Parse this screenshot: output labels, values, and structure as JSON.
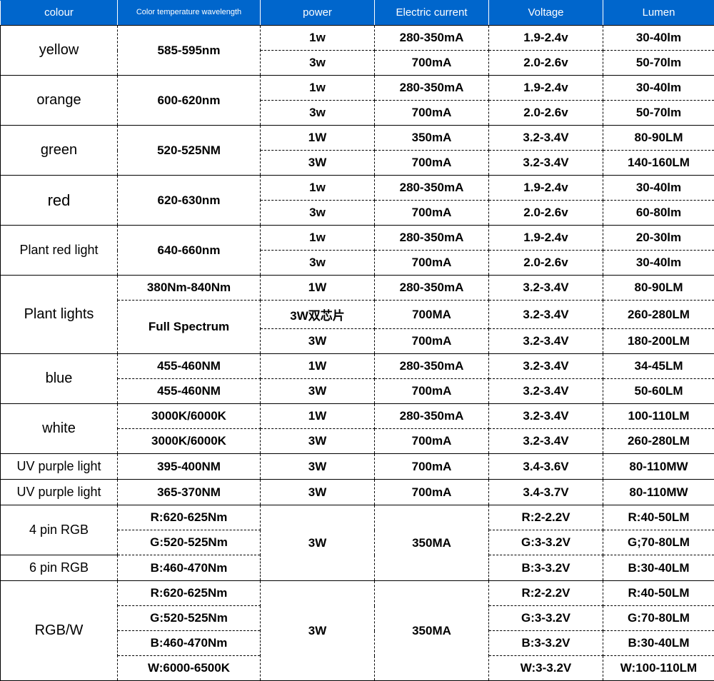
{
  "header_bg": "#0066cc",
  "headers": {
    "c0": "colour",
    "c1": "Color temperature\nwavelength",
    "c2": "power",
    "c3": "Electric current",
    "c4": "Voltage",
    "c5": "Lumen"
  },
  "rows": [
    {
      "colour": "yellow",
      "wave": "585-595nm",
      "power": "1w",
      "current": "280-350mA",
      "voltage": "1.9-2.4v",
      "lumen": "30-40lm"
    },
    {
      "colour": "",
      "wave": "",
      "power": "3w",
      "current": "700mA",
      "voltage": "2.0-2.6v",
      "lumen": "50-70lm"
    },
    {
      "colour": "orange",
      "wave": "600-620nm",
      "power": "1w",
      "current": "280-350mA",
      "voltage": "1.9-2.4v",
      "lumen": "30-40lm"
    },
    {
      "colour": "",
      "wave": "",
      "power": "3w",
      "current": "700mA",
      "voltage": "2.0-2.6v",
      "lumen": "50-70lm"
    },
    {
      "colour": "green",
      "wave": "520-525NM",
      "power": "1W",
      "current": "350mA",
      "voltage": "3.2-3.4V",
      "lumen": "80-90LM"
    },
    {
      "colour": "",
      "wave": "",
      "power": "3W",
      "current": "700mA",
      "voltage": "3.2-3.4V",
      "lumen": "140-160LM"
    },
    {
      "colour": "red",
      "wave": "620-630nm",
      "power": "1w",
      "current": "280-350mA",
      "voltage": "1.9-2.4v",
      "lumen": "30-40lm"
    },
    {
      "colour": "",
      "wave": "",
      "power": "3w",
      "current": "700mA",
      "voltage": "2.0-2.6v",
      "lumen": "60-80lm"
    },
    {
      "colour": "Plant red light",
      "wave": "640-660nm",
      "power": "1w",
      "current": "280-350mA",
      "voltage": "1.9-2.4v",
      "lumen": "20-30lm"
    },
    {
      "colour": "",
      "wave": "",
      "power": "3w",
      "current": "700mA",
      "voltage": "2.0-2.6v",
      "lumen": "30-40lm"
    },
    {
      "colour": "Plant lights",
      "wave": "380Nm-840Nm",
      "power": "1W",
      "current": "280-350mA",
      "voltage": "3.2-3.4V",
      "lumen": "80-90LM"
    },
    {
      "colour": "",
      "wave": "Full Spectrum",
      "power": "3W双芯片",
      "current": "700MA",
      "voltage": "3.2-3.4V",
      "lumen": "260-280LM"
    },
    {
      "colour": "",
      "wave": "",
      "power": "3W",
      "current": "700mA",
      "voltage": "3.2-3.4V",
      "lumen": "180-200LM"
    },
    {
      "colour": "blue",
      "wave": "455-460NM",
      "power": "1W",
      "current": "280-350mA",
      "voltage": "3.2-3.4V",
      "lumen": "34-45LM"
    },
    {
      "colour": "",
      "wave": "455-460NM",
      "power": "3W",
      "current": "700mA",
      "voltage": "3.2-3.4V",
      "lumen": "50-60LM"
    },
    {
      "colour": "white",
      "wave": "3000K/6000K",
      "power": "1W",
      "current": "280-350mA",
      "voltage": "3.2-3.4V",
      "lumen": "100-110LM"
    },
    {
      "colour": "",
      "wave": "3000K/6000K",
      "power": "3W",
      "current": "700mA",
      "voltage": "3.2-3.4V",
      "lumen": "260-280LM"
    },
    {
      "colour": "UV purple light",
      "wave": "395-400NM",
      "power": "3W",
      "current": "700mA",
      "voltage": "3.4-3.6V",
      "lumen": "80-110MW"
    },
    {
      "colour": "UV purple light",
      "wave": "365-370NM",
      "power": "3W",
      "current": "700mA",
      "voltage": "3.4-3.7V",
      "lumen": "80-110MW"
    },
    {
      "colour": "4 pin RGB",
      "wave": "R:620-625Nm",
      "power": "",
      "current": "",
      "voltage": "R:2-2.2V",
      "lumen": "R:40-50LM"
    },
    {
      "colour": "",
      "wave": "G:520-525Nm",
      "power": "3W",
      "current": "350MA",
      "voltage": "G:3-3.2V",
      "lumen": "G;70-80LM"
    },
    {
      "colour": "6 pin RGB",
      "wave": "B:460-470Nm",
      "power": "",
      "current": "",
      "voltage": "B:3-3.2V",
      "lumen": "B:30-40LM"
    },
    {
      "colour": "RGB/W",
      "wave": "R:620-625Nm",
      "power": "",
      "current": "",
      "voltage": "R:2-2.2V",
      "lumen": "R:40-50LM"
    },
    {
      "colour": "",
      "wave": "G:520-525Nm",
      "power": "3W",
      "current": "350MA",
      "voltage": "G:3-3.2V",
      "lumen": "G:70-80LM"
    },
    {
      "colour": "",
      "wave": "B:460-470Nm",
      "power": "",
      "current": "",
      "voltage": "B:3-3.2V",
      "lumen": "B:30-40LM"
    },
    {
      "colour": "",
      "wave": "W:6000-6500K",
      "power": "",
      "current": "",
      "voltage": "W:3-3.2V",
      "lumen": "W:100-110LM"
    }
  ],
  "spans": {
    "colour": [
      {
        "row": 0,
        "span": 2
      },
      {
        "row": 2,
        "span": 2
      },
      {
        "row": 4,
        "span": 2
      },
      {
        "row": 6,
        "span": 2
      },
      {
        "row": 8,
        "span": 2
      },
      {
        "row": 10,
        "span": 3
      },
      {
        "row": 13,
        "span": 2
      },
      {
        "row": 15,
        "span": 2
      },
      {
        "row": 17,
        "span": 1
      },
      {
        "row": 18,
        "span": 1
      },
      {
        "row": 19,
        "span": 2
      },
      {
        "row": 21,
        "span": 1
      },
      {
        "row": 22,
        "span": 4
      }
    ],
    "wave": [
      {
        "row": 0,
        "span": 2
      },
      {
        "row": 2,
        "span": 2
      },
      {
        "row": 4,
        "span": 2
      },
      {
        "row": 6,
        "span": 2
      },
      {
        "row": 8,
        "span": 2
      },
      {
        "row": 10,
        "span": 1
      },
      {
        "row": 11,
        "span": 2
      },
      {
        "row": 13,
        "span": 1
      },
      {
        "row": 14,
        "span": 1
      },
      {
        "row": 15,
        "span": 1
      },
      {
        "row": 16,
        "span": 1
      },
      {
        "row": 17,
        "span": 1
      },
      {
        "row": 18,
        "span": 1
      },
      {
        "row": 19,
        "span": 1
      },
      {
        "row": 20,
        "span": 1
      },
      {
        "row": 21,
        "span": 1
      },
      {
        "row": 22,
        "span": 1
      },
      {
        "row": 23,
        "span": 1
      },
      {
        "row": 24,
        "span": 1
      },
      {
        "row": 25,
        "span": 1
      }
    ],
    "power": [
      {
        "row": 19,
        "span": 3
      },
      {
        "row": 22,
        "span": 4
      }
    ],
    "current": [
      {
        "row": 19,
        "span": 3
      },
      {
        "row": 22,
        "span": 4
      }
    ]
  },
  "solid_bottom_rows": [
    1,
    3,
    5,
    7,
    9,
    12,
    14,
    16,
    17,
    18,
    21,
    25
  ],
  "big_colour_rows": [
    6
  ],
  "normal_colour_rows": [
    8,
    17,
    18,
    19,
    21
  ]
}
